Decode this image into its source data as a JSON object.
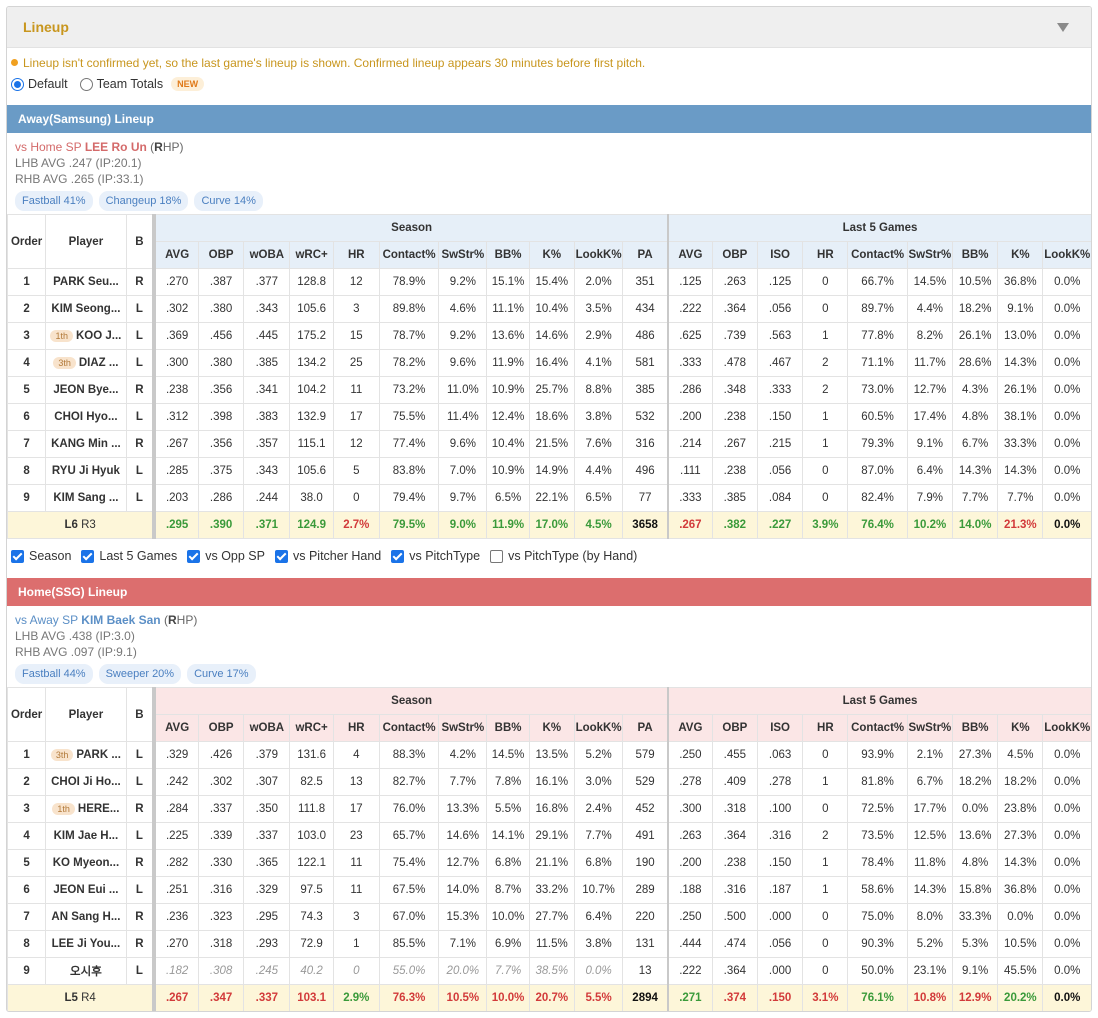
{
  "panel": {
    "title": "Lineup",
    "collapse_icon": "caret-down-icon"
  },
  "notice": "Lineup isn't confirmed yet, so the last game's lineup is shown. Confirmed lineup appears 30 minutes before first pitch.",
  "view_options": [
    {
      "label": "Default",
      "selected": true
    },
    {
      "label": "Team Totals",
      "selected": false,
      "badge": "NEW"
    }
  ],
  "columns": {
    "order": "Order",
    "player": "Player",
    "bats": "B",
    "season_group": "Season",
    "last5_group": "Last 5 Games",
    "season": [
      "AVG",
      "OBP",
      "wOBA",
      "wRC+",
      "HR",
      "Contact%",
      "SwStr%",
      "BB%",
      "K%",
      "LookK%",
      "PA"
    ],
    "last5": [
      "AVG",
      "OBP",
      "ISO",
      "HR",
      "Contact%",
      "SwStr%",
      "BB%",
      "K%",
      "LookK%"
    ]
  },
  "away": {
    "title": "Away(Samsung) Lineup",
    "vs_prefix": "vs Home SP",
    "sp_name": "LEE Ro Un",
    "hand_open": "(",
    "hand_letter": "R",
    "hand_rest": "HP)",
    "lhb": "LHB AVG .247 (IP:20.1)",
    "rhb": "RHB AVG .265 (IP:33.1)",
    "pitches": [
      "Fastball 41%",
      "Changeup 18%",
      "Curve 14%"
    ],
    "rows": [
      {
        "order": "1",
        "badge": "",
        "name": "PARK Seu...",
        "bats": "R",
        "season": [
          ".270",
          ".387",
          ".377",
          "128.8",
          "12",
          "78.9%",
          "9.2%",
          "15.1%",
          "15.4%",
          "2.0%",
          "351"
        ],
        "last5": [
          ".125",
          ".263",
          ".125",
          "0",
          "66.7%",
          "14.5%",
          "10.5%",
          "36.8%",
          "0.0%"
        ]
      },
      {
        "order": "2",
        "badge": "",
        "name": "KIM Seong...",
        "bats": "L",
        "season": [
          ".302",
          ".380",
          ".343",
          "105.6",
          "3",
          "89.8%",
          "4.6%",
          "11.1%",
          "10.4%",
          "3.5%",
          "434"
        ],
        "last5": [
          ".222",
          ".364",
          ".056",
          "0",
          "89.7%",
          "4.4%",
          "18.2%",
          "9.1%",
          "0.0%"
        ]
      },
      {
        "order": "3",
        "badge": "1th",
        "name": "KOO J...",
        "bats": "L",
        "season": [
          ".369",
          ".456",
          ".445",
          "175.2",
          "15",
          "78.7%",
          "9.2%",
          "13.6%",
          "14.6%",
          "2.9%",
          "486"
        ],
        "last5": [
          ".625",
          ".739",
          ".563",
          "1",
          "77.8%",
          "8.2%",
          "26.1%",
          "13.0%",
          "0.0%"
        ]
      },
      {
        "order": "4",
        "badge": "3th",
        "name": "DIAZ ...",
        "bats": "L",
        "season": [
          ".300",
          ".380",
          ".385",
          "134.2",
          "25",
          "78.2%",
          "9.6%",
          "11.9%",
          "16.4%",
          "4.1%",
          "581"
        ],
        "last5": [
          ".333",
          ".478",
          ".467",
          "2",
          "71.1%",
          "11.7%",
          "28.6%",
          "14.3%",
          "0.0%"
        ]
      },
      {
        "order": "5",
        "badge": "",
        "name": "JEON Bye...",
        "bats": "R",
        "season": [
          ".238",
          ".356",
          ".341",
          "104.2",
          "11",
          "73.2%",
          "11.0%",
          "10.9%",
          "25.7%",
          "8.8%",
          "385"
        ],
        "last5": [
          ".286",
          ".348",
          ".333",
          "2",
          "73.0%",
          "12.7%",
          "4.3%",
          "26.1%",
          "0.0%"
        ]
      },
      {
        "order": "6",
        "badge": "",
        "name": "CHOI Hyo...",
        "bats": "L",
        "season": [
          ".312",
          ".398",
          ".383",
          "132.9",
          "17",
          "75.5%",
          "11.4%",
          "12.4%",
          "18.6%",
          "3.8%",
          "532"
        ],
        "last5": [
          ".200",
          ".238",
          ".150",
          "1",
          "60.5%",
          "17.4%",
          "4.8%",
          "38.1%",
          "0.0%"
        ]
      },
      {
        "order": "7",
        "badge": "",
        "name": "KANG Min ...",
        "bats": "R",
        "season": [
          ".267",
          ".356",
          ".357",
          "115.1",
          "12",
          "77.4%",
          "9.6%",
          "10.4%",
          "21.5%",
          "7.6%",
          "316"
        ],
        "last5": [
          ".214",
          ".267",
          ".215",
          "1",
          "79.3%",
          "9.1%",
          "6.7%",
          "33.3%",
          "0.0%"
        ]
      },
      {
        "order": "8",
        "badge": "",
        "name": "RYU Ji Hyuk",
        "bats": "L",
        "season": [
          ".285",
          ".375",
          ".343",
          "105.6",
          "5",
          "83.8%",
          "7.0%",
          "10.9%",
          "14.9%",
          "4.4%",
          "496"
        ],
        "last5": [
          ".111",
          ".238",
          ".056",
          "0",
          "87.0%",
          "6.4%",
          "14.3%",
          "14.3%",
          "0.0%"
        ]
      },
      {
        "order": "9",
        "badge": "",
        "name": "KIM Sang ...",
        "bats": "L",
        "season": [
          ".203",
          ".286",
          ".244",
          "38.0",
          "0",
          "79.4%",
          "9.7%",
          "6.5%",
          "22.1%",
          "6.5%",
          "77"
        ],
        "last5": [
          ".333",
          ".385",
          ".084",
          "0",
          "82.4%",
          "7.9%",
          "7.7%",
          "7.7%",
          "0.0%"
        ]
      }
    ],
    "total": {
      "label_l": "L6",
      "label_r": "R3",
      "season": [
        {
          "v": ".295",
          "c": "g"
        },
        {
          "v": ".390",
          "c": "g"
        },
        {
          "v": ".371",
          "c": "g"
        },
        {
          "v": "124.9",
          "c": "g"
        },
        {
          "v": "2.7%",
          "c": "r"
        },
        {
          "v": "79.5%",
          "c": "g"
        },
        {
          "v": "9.0%",
          "c": "g"
        },
        {
          "v": "11.9%",
          "c": "g"
        },
        {
          "v": "17.0%",
          "c": "g"
        },
        {
          "v": "4.5%",
          "c": "g"
        },
        {
          "v": "3658",
          "c": "k"
        }
      ],
      "last5": [
        {
          "v": ".267",
          "c": "r"
        },
        {
          "v": ".382",
          "c": "g"
        },
        {
          "v": ".227",
          "c": "g"
        },
        {
          "v": "3.9%",
          "c": "g"
        },
        {
          "v": "76.4%",
          "c": "g"
        },
        {
          "v": "10.2%",
          "c": "g"
        },
        {
          "v": "14.0%",
          "c": "g"
        },
        {
          "v": "21.3%",
          "c": "r"
        },
        {
          "v": "0.0%",
          "c": "k"
        }
      ]
    }
  },
  "filters": [
    {
      "label": "Season",
      "checked": true
    },
    {
      "label": "Last 5 Games",
      "checked": true
    },
    {
      "label": "vs Opp SP",
      "checked": true
    },
    {
      "label": "vs Pitcher Hand",
      "checked": true
    },
    {
      "label": "vs PitchType",
      "checked": true
    },
    {
      "label": "vs PitchType (by Hand)",
      "checked": false
    }
  ],
  "home": {
    "title": "Home(SSG) Lineup",
    "vs_prefix": "vs Away SP",
    "sp_name": "KIM Baek San",
    "hand_open": "(",
    "hand_letter": "R",
    "hand_rest": "HP)",
    "lhb": "LHB AVG .438 (IP:3.0)",
    "rhb": "RHB AVG .097 (IP:9.1)",
    "pitches": [
      "Fastball 44%",
      "Sweeper 20%",
      "Curve 17%"
    ],
    "rows": [
      {
        "order": "1",
        "badge": "3th",
        "name": "PARK ...",
        "bats": "L",
        "season": [
          ".329",
          ".426",
          ".379",
          "131.6",
          "4",
          "88.3%",
          "4.2%",
          "14.5%",
          "13.5%",
          "5.2%",
          "579"
        ],
        "last5": [
          ".250",
          ".455",
          ".063",
          "0",
          "93.9%",
          "2.1%",
          "27.3%",
          "4.5%",
          "0.0%"
        ]
      },
      {
        "order": "2",
        "badge": "",
        "name": "CHOI Ji Ho...",
        "bats": "L",
        "season": [
          ".242",
          ".302",
          ".307",
          "82.5",
          "13",
          "82.7%",
          "7.7%",
          "7.8%",
          "16.1%",
          "3.0%",
          "529"
        ],
        "last5": [
          ".278",
          ".409",
          ".278",
          "1",
          "81.8%",
          "6.7%",
          "18.2%",
          "18.2%",
          "0.0%"
        ]
      },
      {
        "order": "3",
        "badge": "1th",
        "name": "HERE...",
        "bats": "R",
        "season": [
          ".284",
          ".337",
          ".350",
          "111.8",
          "17",
          "76.0%",
          "13.3%",
          "5.5%",
          "16.8%",
          "2.4%",
          "452"
        ],
        "last5": [
          ".300",
          ".318",
          ".100",
          "0",
          "72.5%",
          "17.7%",
          "0.0%",
          "23.8%",
          "0.0%"
        ]
      },
      {
        "order": "4",
        "badge": "",
        "name": "KIM Jae H...",
        "bats": "L",
        "season": [
          ".225",
          ".339",
          ".337",
          "103.0",
          "23",
          "65.7%",
          "14.6%",
          "14.1%",
          "29.1%",
          "7.7%",
          "491"
        ],
        "last5": [
          ".263",
          ".364",
          ".316",
          "2",
          "73.5%",
          "12.5%",
          "13.6%",
          "27.3%",
          "0.0%"
        ]
      },
      {
        "order": "5",
        "badge": "",
        "name": "KO Myeon...",
        "bats": "R",
        "season": [
          ".282",
          ".330",
          ".365",
          "122.1",
          "11",
          "75.4%",
          "12.7%",
          "6.8%",
          "21.1%",
          "6.8%",
          "190"
        ],
        "last5": [
          ".200",
          ".238",
          ".150",
          "1",
          "78.4%",
          "11.8%",
          "4.8%",
          "14.3%",
          "0.0%"
        ]
      },
      {
        "order": "6",
        "badge": "",
        "name": "JEON Eui ...",
        "bats": "L",
        "season": [
          ".251",
          ".316",
          ".329",
          "97.5",
          "11",
          "67.5%",
          "14.0%",
          "8.7%",
          "33.2%",
          "10.7%",
          "289"
        ],
        "last5": [
          ".188",
          ".316",
          ".187",
          "1",
          "58.6%",
          "14.3%",
          "15.8%",
          "36.8%",
          "0.0%"
        ]
      },
      {
        "order": "7",
        "badge": "",
        "name": "AN Sang H...",
        "bats": "R",
        "season": [
          ".236",
          ".323",
          ".295",
          "74.3",
          "3",
          "67.0%",
          "15.3%",
          "10.0%",
          "27.7%",
          "6.4%",
          "220"
        ],
        "last5": [
          ".250",
          ".500",
          ".000",
          "0",
          "75.0%",
          "8.0%",
          "33.3%",
          "0.0%",
          "0.0%"
        ]
      },
      {
        "order": "8",
        "badge": "",
        "name": "LEE Ji You...",
        "bats": "R",
        "season": [
          ".270",
          ".318",
          ".293",
          "72.9",
          "1",
          "85.5%",
          "7.1%",
          "6.9%",
          "11.5%",
          "3.8%",
          "131"
        ],
        "last5": [
          ".444",
          ".474",
          ".056",
          "0",
          "90.3%",
          "5.2%",
          "5.3%",
          "10.5%",
          "0.0%"
        ]
      },
      {
        "order": "9",
        "badge": "",
        "name": "오시후",
        "bats": "L",
        "italic": true,
        "season": [
          ".182",
          ".308",
          ".245",
          "40.2",
          "0",
          "55.0%",
          "20.0%",
          "7.7%",
          "38.5%",
          "0.0%",
          "13"
        ],
        "last5": [
          ".222",
          ".364",
          ".000",
          "0",
          "50.0%",
          "23.1%",
          "9.1%",
          "45.5%",
          "0.0%"
        ]
      }
    ],
    "total": {
      "label_l": "L5",
      "label_r": "R4",
      "season": [
        {
          "v": ".267",
          "c": "r"
        },
        {
          "v": ".347",
          "c": "r"
        },
        {
          "v": ".337",
          "c": "r"
        },
        {
          "v": "103.1",
          "c": "r"
        },
        {
          "v": "2.9%",
          "c": "g"
        },
        {
          "v": "76.3%",
          "c": "r"
        },
        {
          "v": "10.5%",
          "c": "r"
        },
        {
          "v": "10.0%",
          "c": "r"
        },
        {
          "v": "20.7%",
          "c": "r"
        },
        {
          "v": "5.5%",
          "c": "r"
        },
        {
          "v": "2894",
          "c": "k"
        }
      ],
      "last5": [
        {
          "v": ".271",
          "c": "g"
        },
        {
          "v": ".374",
          "c": "r"
        },
        {
          "v": ".150",
          "c": "r"
        },
        {
          "v": "3.1%",
          "c": "r"
        },
        {
          "v": "76.1%",
          "c": "g"
        },
        {
          "v": "10.8%",
          "c": "r"
        },
        {
          "v": "12.9%",
          "c": "r"
        },
        {
          "v": "20.2%",
          "c": "g"
        },
        {
          "v": "0.0%",
          "c": "k"
        }
      ]
    }
  }
}
